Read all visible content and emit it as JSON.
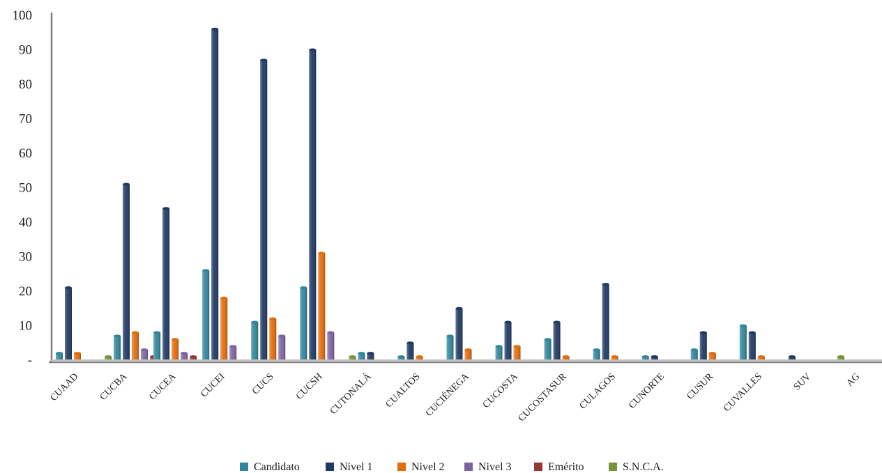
{
  "chart_data": {
    "type": "bar",
    "title": "",
    "xlabel": "",
    "ylabel": "",
    "ylim": [
      0,
      100
    ],
    "yticks": [
      {
        "value": 0,
        "label": "-"
      },
      {
        "value": 10,
        "label": "10"
      },
      {
        "value": 20,
        "label": "20"
      },
      {
        "value": 30,
        "label": "30"
      },
      {
        "value": 40,
        "label": "40"
      },
      {
        "value": 50,
        "label": "50"
      },
      {
        "value": 60,
        "label": "60"
      },
      {
        "value": 70,
        "label": "70"
      },
      {
        "value": 80,
        "label": "80"
      },
      {
        "value": 90,
        "label": "90"
      },
      {
        "value": 100,
        "label": "100"
      }
    ],
    "grid": false,
    "legend_position": "bottom",
    "categories": [
      "CUAAD",
      "CUCBA",
      "CUCEA",
      "CUCEI",
      "CUCS",
      "CUCSH",
      "CUTONALÁ",
      "CUALTOS",
      "CUCIÉNEGA",
      "CUCOSTA",
      "CUCOSTASUR",
      "CULAGOS",
      "CUNORTE",
      "CUSUR",
      "CUVALLES",
      "SUV",
      "AG"
    ],
    "series": [
      {
        "name": "Candidato",
        "color": "#31859c",
        "values": [
          2,
          7,
          8,
          26,
          11,
          21,
          2,
          1,
          7,
          4,
          6,
          3,
          1,
          3,
          10,
          0,
          0
        ]
      },
      {
        "name": "Nivel 1",
        "color": "#1f3864",
        "values": [
          21,
          51,
          44,
          96,
          87,
          90,
          2,
          5,
          15,
          11,
          11,
          22,
          1,
          8,
          8,
          1,
          0
        ]
      },
      {
        "name": "Nivel 2",
        "color": "#e36c09",
        "values": [
          2,
          8,
          6,
          18,
          12,
          31,
          0,
          1,
          3,
          4,
          1,
          1,
          0,
          2,
          1,
          0,
          0
        ]
      },
      {
        "name": "Nivel 3",
        "color": "#7f63a1",
        "values": [
          0,
          3,
          2,
          4,
          7,
          8,
          0,
          0,
          0,
          0,
          0,
          0,
          0,
          0,
          0,
          0,
          0
        ]
      },
      {
        "name": "Emérito",
        "color": "#953735",
        "values": [
          0,
          1,
          1,
          0,
          0,
          0,
          0,
          0,
          0,
          0,
          0,
          0,
          0,
          0,
          0,
          0,
          0
        ]
      },
      {
        "name": "S.N.C.A.",
        "color": "#77933c",
        "values": [
          0,
          1,
          0,
          0,
          0,
          0,
          1,
          0,
          0,
          0,
          0,
          0,
          0,
          0,
          0,
          0,
          1
        ]
      }
    ]
  }
}
